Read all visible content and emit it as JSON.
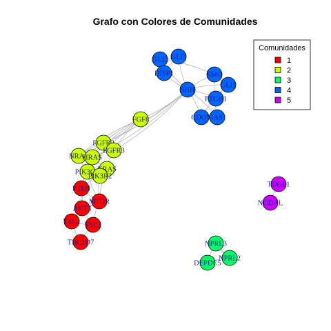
{
  "title": "Grafo con Colores de Comunidades",
  "legend": {
    "title": "Comunidades",
    "entries": [
      {
        "label": "1",
        "color": "#ff0000"
      },
      {
        "label": "2",
        "color": "#ccff00"
      },
      {
        "label": "3",
        "color": "#00ff66"
      },
      {
        "label": "4",
        "color": "#0066ff"
      },
      {
        "label": "5",
        "color": "#cc00ff"
      }
    ]
  },
  "nodes": [
    {
      "id": "GLI2",
      "community": "4"
    },
    {
      "id": "GLI3",
      "community": "4"
    },
    {
      "id": "DISP1",
      "community": "4"
    },
    {
      "id": "SMO",
      "community": "4"
    },
    {
      "id": "GLI1",
      "community": "4"
    },
    {
      "id": "SHH",
      "community": "4"
    },
    {
      "id": "PTCH1",
      "community": "4"
    },
    {
      "id": "CDON",
      "community": "4"
    },
    {
      "id": "GAS1",
      "community": "4"
    },
    {
      "id": "FGF8",
      "community": "2"
    },
    {
      "id": "FGFR2",
      "community": "2"
    },
    {
      "id": "FGFR3",
      "community": "2"
    },
    {
      "id": "NRAS",
      "community": "2"
    },
    {
      "id": "HRAS",
      "community": "2"
    },
    {
      "id": "PIK3CA",
      "community": "2"
    },
    {
      "id": "KRAS",
      "community": "2"
    },
    {
      "id": "PIK3R2",
      "community": "2"
    },
    {
      "id": "PTEN",
      "community": "1"
    },
    {
      "id": "MTOR",
      "community": "1"
    },
    {
      "id": "AKT3",
      "community": "1"
    },
    {
      "id": "TSC2",
      "community": "1"
    },
    {
      "id": "TSC1",
      "community": "1"
    },
    {
      "id": "TBC1D7",
      "community": "1"
    },
    {
      "id": "NPRL3",
      "community": "3"
    },
    {
      "id": "NPRL2",
      "community": "3"
    },
    {
      "id": "DEPDC5",
      "community": "3"
    },
    {
      "id": "TDGF1",
      "community": "5"
    },
    {
      "id": "NODAL",
      "community": "5"
    }
  ],
  "edges": [
    [
      "GLI2",
      "GLI3"
    ],
    [
      "GLI2",
      "DISP1"
    ],
    [
      "GLI3",
      "DISP1"
    ],
    [
      "GLI2",
      "SHH"
    ],
    [
      "GLI3",
      "SHH"
    ],
    [
      "DISP1",
      "SHH"
    ],
    [
      "SMO",
      "SHH"
    ],
    [
      "GLI1",
      "SHH"
    ],
    [
      "PTCH1",
      "SHH"
    ],
    [
      "CDON",
      "SHH"
    ],
    [
      "GAS1",
      "SHH"
    ],
    [
      "SMO",
      "PTCH1"
    ],
    [
      "SMO",
      "GLI1"
    ],
    [
      "GLI1",
      "PTCH1"
    ],
    [
      "PTCH1",
      "CDON"
    ],
    [
      "PTCH1",
      "GAS1"
    ],
    [
      "CDON",
      "GAS1"
    ],
    [
      "SMO",
      "GLI2"
    ],
    [
      "FGF8",
      "SHH"
    ],
    [
      "FGFR2",
      "SHH"
    ],
    [
      "FGFR3",
      "SHH"
    ],
    [
      "NRAS",
      "SHH"
    ],
    [
      "HRAS",
      "SHH"
    ],
    [
      "FGF8",
      "FGFR2"
    ],
    [
      "FGF8",
      "FGFR3"
    ],
    [
      "FGF8",
      "NRAS"
    ],
    [
      "FGF8",
      "HRAS"
    ],
    [
      "FGF8",
      "PIK3CA"
    ],
    [
      "FGFR2",
      "FGFR3"
    ],
    [
      "FGFR2",
      "NRAS"
    ],
    [
      "FGFR2",
      "HRAS"
    ],
    [
      "FGFR3",
      "HRAS"
    ],
    [
      "FGFR3",
      "KRAS"
    ],
    [
      "NRAS",
      "HRAS"
    ],
    [
      "NRAS",
      "PIK3CA"
    ],
    [
      "HRAS",
      "PIK3CA"
    ],
    [
      "HRAS",
      "KRAS"
    ],
    [
      "KRAS",
      "PIK3CA"
    ],
    [
      "KRAS",
      "PIK3R2"
    ],
    [
      "PIK3CA",
      "PIK3R2"
    ],
    [
      "PIK3CA",
      "PTEN"
    ],
    [
      "PIK3CA",
      "MTOR"
    ],
    [
      "PIK3R2",
      "PTEN"
    ],
    [
      "PIK3R2",
      "MTOR"
    ],
    [
      "PIK3CA",
      "AKT3"
    ],
    [
      "KRAS",
      "MTOR"
    ],
    [
      "PTEN",
      "AKT3"
    ],
    [
      "PTEN",
      "MTOR"
    ],
    [
      "AKT3",
      "MTOR"
    ],
    [
      "AKT3",
      "TSC2"
    ],
    [
      "AKT3",
      "TSC1"
    ],
    [
      "MTOR",
      "TSC1"
    ],
    [
      "MTOR",
      "TSC2"
    ],
    [
      "TSC2",
      "TSC1"
    ],
    [
      "TSC2",
      "TBC1D7"
    ],
    [
      "TSC1",
      "TBC1D7"
    ],
    [
      "NPRL3",
      "NPRL2"
    ],
    [
      "NPRL3",
      "DEPDC5"
    ],
    [
      "NPRL2",
      "DEPDC5"
    ],
    [
      "TDGF1",
      "NODAL"
    ]
  ]
}
